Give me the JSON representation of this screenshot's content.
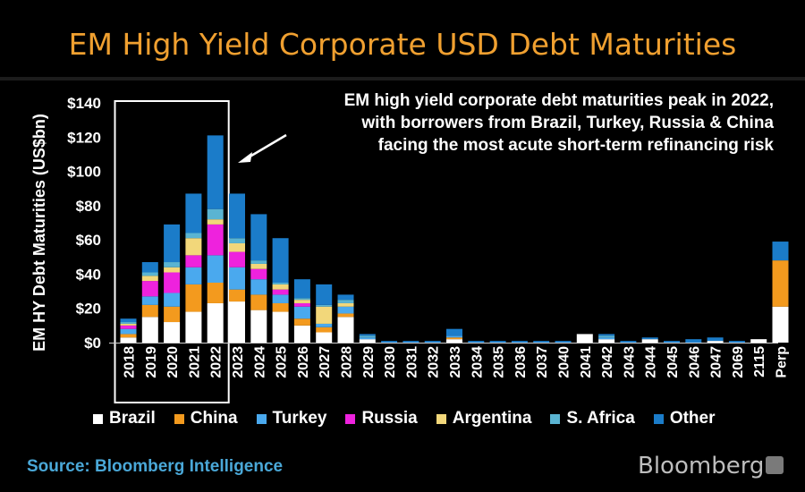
{
  "page": {
    "title": "EM High Yield Corporate USD Debt Maturities",
    "annotation": [
      "EM high yield corporate debt maturities peak in 2022,",
      "with borrowers from Brazil, Turkey, Russia & China",
      "facing the most acute short-term refinancing risk"
    ],
    "source": "Source: Bloomberg Intelligence",
    "brand": "Bloomberg",
    "brand_icon": "bloomberg-terminal-icon"
  },
  "colors": {
    "background": "#000000",
    "title": "#f0a030",
    "source": "#4aa8d8",
    "Brazil": "#ffffff",
    "China": "#f39a1e",
    "Turkey": "#4aa9ee",
    "Russia": "#ee22dd",
    "Argentina": "#f2d77a",
    "S. Africa": "#5ab4d2",
    "Other": "#1b7cc9"
  },
  "chart_data": {
    "type": "bar",
    "stacked": true,
    "ylabel": "EM HY Debt Maturities (US$bn)",
    "ylim": [
      0,
      140
    ],
    "yticks": [
      "$0",
      "$20",
      "$40",
      "$60",
      "$80",
      "$100",
      "$120",
      "$140"
    ],
    "grid": false,
    "legend_position": "bottom",
    "highlight_box": [
      "2018",
      "2022"
    ],
    "categories": [
      "2018",
      "2019",
      "2020",
      "2021",
      "2022",
      "2023",
      "2024",
      "2025",
      "2026",
      "2027",
      "2028",
      "2029",
      "2030",
      "2031",
      "2032",
      "2033",
      "2034",
      "2035",
      "2036",
      "2037",
      "2040",
      "2041",
      "2042",
      "2043",
      "2044",
      "2045",
      "2046",
      "2047",
      "2069",
      "2115",
      "Perp"
    ],
    "series": [
      {
        "name": "Brazil",
        "values": [
          3,
          15,
          12,
          18,
          23,
          24,
          19,
          18,
          10,
          6,
          15,
          2,
          0,
          0,
          0,
          2,
          0,
          0,
          0,
          0,
          0,
          5,
          2,
          0,
          2,
          0,
          0,
          1,
          0,
          2,
          21
        ]
      },
      {
        "name": "China",
        "values": [
          2,
          7,
          9,
          16,
          12,
          7,
          9,
          5,
          4,
          3,
          2,
          0,
          0,
          0,
          0,
          1,
          0,
          0,
          0,
          0,
          0,
          0,
          0,
          0,
          0,
          0,
          0,
          0,
          0,
          0,
          27
        ]
      },
      {
        "name": "Turkey",
        "values": [
          3,
          5,
          8,
          10,
          16,
          13,
          9,
          5,
          7,
          2,
          4,
          1,
          0,
          0,
          0,
          1,
          0,
          0,
          0,
          0,
          0,
          0,
          1,
          0,
          0,
          0,
          0,
          0,
          0,
          0,
          0
        ]
      },
      {
        "name": "Russia",
        "values": [
          2,
          9,
          12,
          7,
          18,
          9,
          6,
          3,
          2,
          0,
          0,
          0,
          0,
          0,
          0,
          0,
          0,
          0,
          0,
          0,
          0,
          0,
          0,
          0,
          0,
          0,
          0,
          0,
          0,
          0,
          0
        ]
      },
      {
        "name": "Argentina",
        "values": [
          1,
          3,
          3,
          10,
          3,
          5,
          3,
          3,
          2,
          10,
          2,
          0,
          0,
          0,
          0,
          0,
          0,
          0,
          0,
          0,
          0,
          0,
          0,
          0,
          0,
          0,
          0,
          0,
          0,
          0,
          0
        ]
      },
      {
        "name": "S. Africa",
        "values": [
          1,
          2,
          3,
          3,
          6,
          3,
          2,
          1,
          1,
          1,
          2,
          1,
          0,
          0,
          0,
          0,
          0,
          0,
          0,
          0,
          0,
          0,
          1,
          0,
          0,
          0,
          0,
          0,
          0,
          0,
          0
        ]
      },
      {
        "name": "Other",
        "values": [
          2,
          6,
          22,
          23,
          43,
          26,
          27,
          26,
          11,
          12,
          3,
          1,
          1,
          1,
          1,
          4,
          1,
          1,
          1,
          1,
          1,
          0,
          1,
          1,
          1,
          1,
          2,
          2,
          1,
          0,
          11
        ]
      }
    ]
  }
}
